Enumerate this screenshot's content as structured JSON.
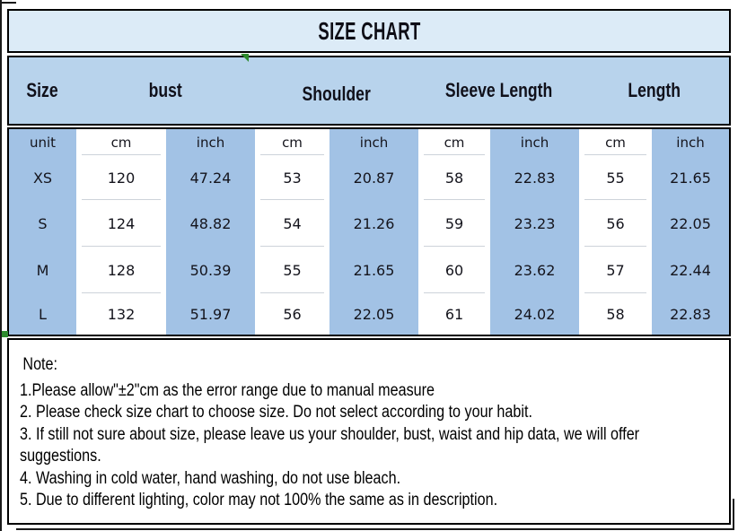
{
  "title": "SIZE CHART",
  "header": {
    "columns": [
      "Size",
      "bust",
      "Shoulder",
      "Sleeve Length",
      "Length"
    ]
  },
  "table": {
    "unit_label": "unit",
    "unit_row": [
      "cm",
      "inch",
      "cm",
      "inch",
      "cm",
      "inch",
      "cm",
      "inch"
    ],
    "rows": [
      {
        "size": "XS",
        "values": [
          "120",
          "47.24",
          "53",
          "20.87",
          "58",
          "22.83",
          "55",
          "21.65"
        ]
      },
      {
        "size": "S",
        "values": [
          "124",
          "48.82",
          "54",
          "21.26",
          "59",
          "23.23",
          "56",
          "22.05"
        ]
      },
      {
        "size": "M",
        "values": [
          "128",
          "50.39",
          "55",
          "21.65",
          "60",
          "23.62",
          "57",
          "22.44"
        ]
      },
      {
        "size": "L",
        "values": [
          "132",
          "51.97",
          "56",
          "22.05",
          "61",
          "24.02",
          "58",
          "22.83"
        ]
      }
    ]
  },
  "notes": {
    "lines": [
      "Note:",
      "1.Please allow\"±2\"cm as the error range due to manual measure",
      "2. Please check size chart to choose size. Do not select according to your habit.",
      "3. If still not sure about size, please leave us your shoulder, bust, waist and hip data, we will offer",
      "suggestions.",
      "4. Washing in cold water, hand washing, do not use bleach.",
      "5. Due to different lighting, color may not 100% the same as in description."
    ]
  },
  "colors": {
    "title_bg": "#dcebf7",
    "header_bg": "#b8d3ec",
    "column_blue": "#a2c2e5",
    "grid_line": "#cdd3da",
    "marker_green": "#2e8b2e",
    "border_black": "#000000"
  }
}
